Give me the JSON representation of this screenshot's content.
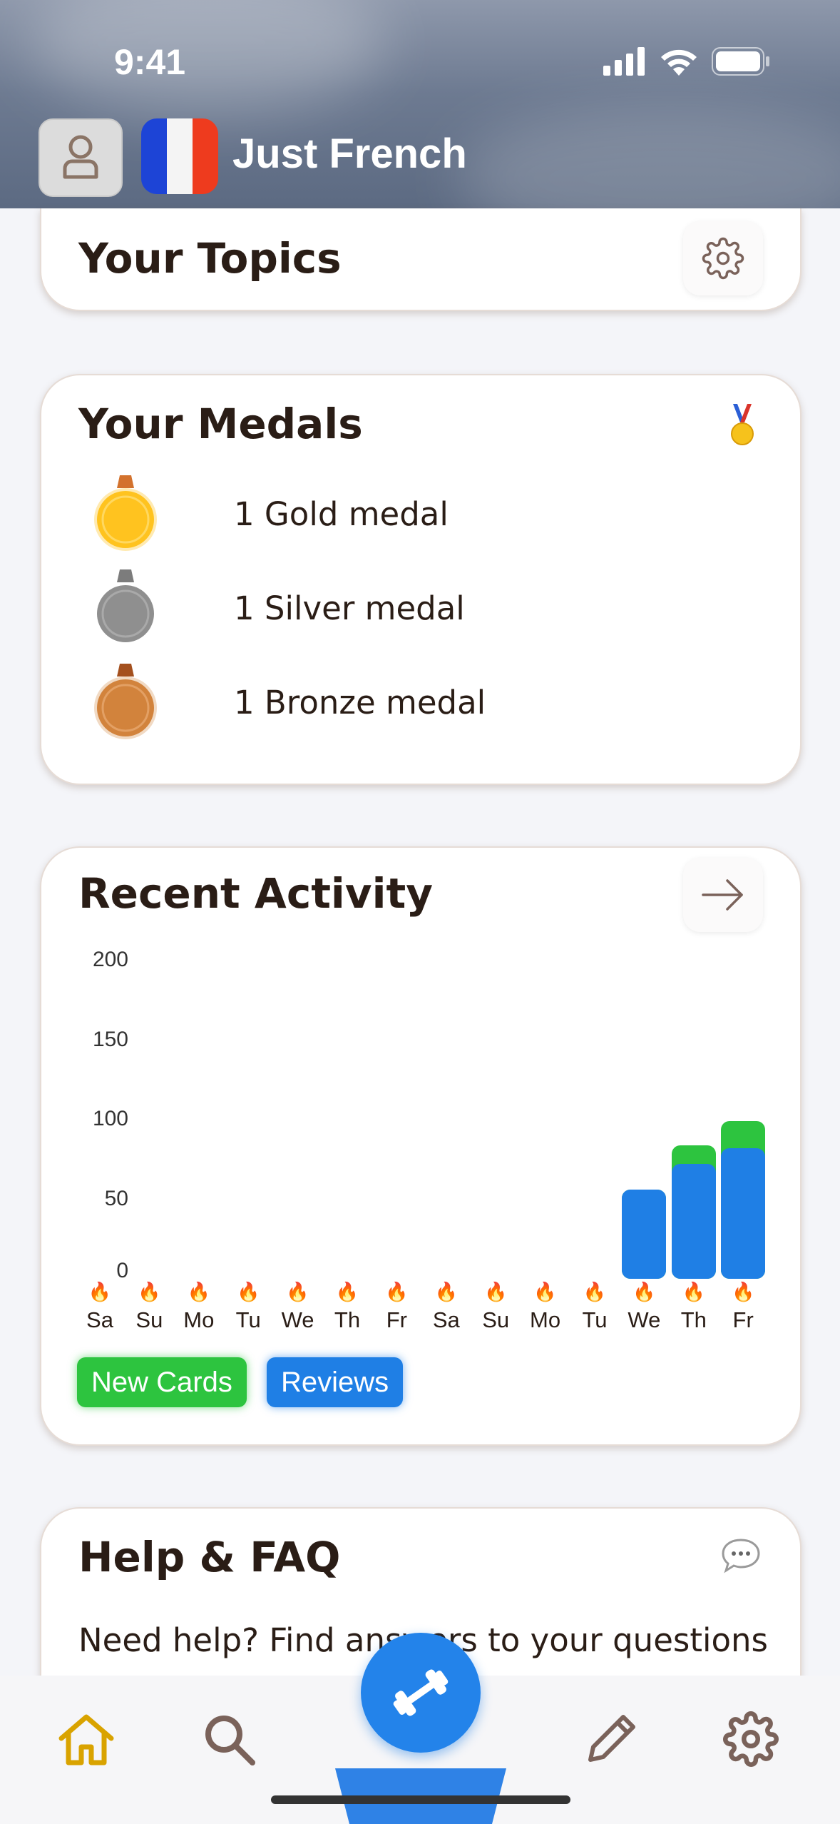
{
  "status_bar": {
    "time": "9:41"
  },
  "header": {
    "title": "Just French"
  },
  "topics_card": {
    "title": "Your Topics"
  },
  "medals_card": {
    "title": "Your Medals",
    "medals": [
      {
        "label": "1 Gold medal",
        "color": "#ffc31f"
      },
      {
        "label": "1 Silver medal",
        "color": "#8f8f8f"
      },
      {
        "label": "1 Bronze medal",
        "color": "#d2833c"
      }
    ]
  },
  "activity_card": {
    "title": "Recent Activity",
    "legend": {
      "new_cards": "New Cards",
      "reviews": "Reviews"
    }
  },
  "chart_data": {
    "type": "bar",
    "stacked": true,
    "categories": [
      "Sa",
      "Su",
      "Mo",
      "Tu",
      "We",
      "Th",
      "Fr",
      "Sa",
      "Su",
      "Mo",
      "Tu",
      "We",
      "Th",
      "Fr"
    ],
    "yticks": [
      "200",
      "150",
      "100",
      "50",
      "0"
    ],
    "ylim": [
      0,
      200
    ],
    "series": [
      {
        "name": "Reviews",
        "color": "#1f7fe5",
        "values": [
          0,
          0,
          0,
          0,
          0,
          0,
          0,
          0,
          0,
          0,
          0,
          56,
          72,
          82
        ]
      },
      {
        "name": "New Cards",
        "color": "#2dc43f",
        "values": [
          0,
          0,
          0,
          0,
          0,
          0,
          0,
          0,
          0,
          0,
          0,
          0,
          12,
          17
        ]
      }
    ],
    "grid": false,
    "legend": "bottom-left"
  },
  "help_card": {
    "title": "Help & FAQ",
    "text": "Need help? Find answers to your questions"
  },
  "colors": {
    "accent": "#1f7fe5",
    "home_active": "#d9a300",
    "nav_icon": "#7a625a"
  }
}
